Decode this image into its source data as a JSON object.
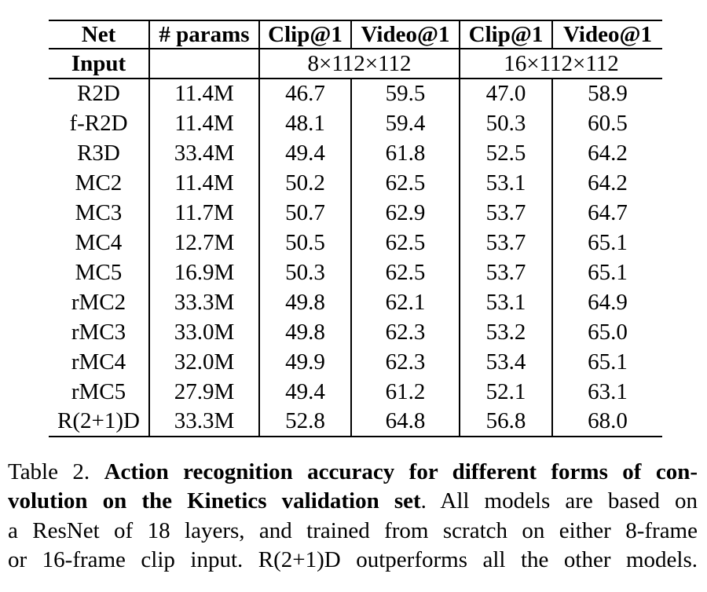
{
  "colors": {
    "text": "#000000",
    "background": "#ffffff",
    "rule": "#000000"
  },
  "table": {
    "columns": [
      {
        "label": "Net"
      },
      {
        "label": "# params"
      },
      {
        "label": "Clip@1"
      },
      {
        "label": "Video@1"
      },
      {
        "label": "Clip@1"
      },
      {
        "label": "Video@1"
      }
    ],
    "input_row": {
      "label": "Input",
      "params": "",
      "span_groups": [
        "8×112×112",
        "16×112×112"
      ]
    },
    "rows": [
      {
        "net": "R2D",
        "params": "11.4M",
        "values": [
          "46.7",
          "59.5",
          "47.0",
          "58.9"
        ],
        "bold_values": false
      },
      {
        "net": "f-R2D",
        "params": "11.4M",
        "values": [
          "48.1",
          "59.4",
          "50.3",
          "60.5"
        ],
        "bold_values": false
      },
      {
        "net": "R3D",
        "params": "33.4M",
        "values": [
          "49.4",
          "61.8",
          "52.5",
          "64.2"
        ],
        "bold_values": false
      },
      {
        "net": "MC2",
        "params": "11.4M",
        "values": [
          "50.2",
          "62.5",
          "53.1",
          "64.2"
        ],
        "bold_values": false
      },
      {
        "net": "MC3",
        "params": "11.7M",
        "values": [
          "50.7",
          "62.9",
          "53.7",
          "64.7"
        ],
        "bold_values": false
      },
      {
        "net": "MC4",
        "params": "12.7M",
        "values": [
          "50.5",
          "62.5",
          "53.7",
          "65.1"
        ],
        "bold_values": false
      },
      {
        "net": "MC5",
        "params": "16.9M",
        "values": [
          "50.3",
          "62.5",
          "53.7",
          "65.1"
        ],
        "bold_values": false
      },
      {
        "net": "rMC2",
        "params": "33.3M",
        "values": [
          "49.8",
          "62.1",
          "53.1",
          "64.9"
        ],
        "bold_values": false
      },
      {
        "net": "rMC3",
        "params": "33.0M",
        "values": [
          "49.8",
          "62.3",
          "53.2",
          "65.0"
        ],
        "bold_values": false
      },
      {
        "net": "rMC4",
        "params": "32.0M",
        "values": [
          "49.9",
          "62.3",
          "53.4",
          "65.1"
        ],
        "bold_values": false
      },
      {
        "net": "rMC5",
        "params": "27.9M",
        "values": [
          "49.4",
          "61.2",
          "52.1",
          "63.1"
        ],
        "bold_values": false
      },
      {
        "net": "R(2+1)D",
        "params": "33.3M",
        "values": [
          "52.8",
          "64.8",
          "56.8",
          "68.0"
        ],
        "bold_values": true
      }
    ]
  },
  "caption": {
    "lines": [
      [
        {
          "text": "Table 2. ",
          "bold": false
        },
        {
          "text": "Action recognition accuracy for different forms of con-",
          "bold": true
        }
      ],
      [
        {
          "text": "volution on the Kinetics validation set",
          "bold": true
        },
        {
          "text": ". All models are based on",
          "bold": false
        }
      ],
      [
        {
          "text": "a ResNet of 18 layers, and trained from scratch on either 8-frame",
          "bold": false
        }
      ],
      [
        {
          "text": "or 16-frame clip input. R(2+1)D outperforms all the other models.",
          "bold": false
        }
      ]
    ]
  }
}
